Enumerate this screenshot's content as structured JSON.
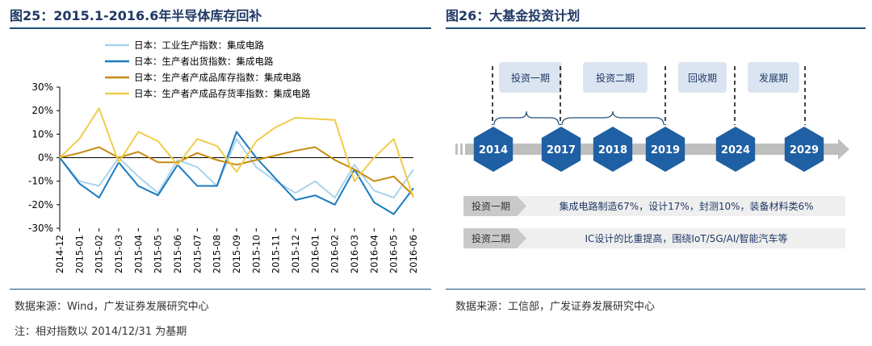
{
  "left": {
    "title": "图25：2015.1-2016.6年半导体库存回补",
    "source": "数据来源：Wind，广发证券发展研究中心",
    "note": "注：相对指数以 2014/12/31 为基期",
    "chart_data": {
      "type": "line",
      "title": "2015.1-2016.6年半导体库存回补",
      "xlabel": "",
      "ylabel": "",
      "ylim": [
        -30,
        30
      ],
      "yticks": [
        -30,
        -20,
        -10,
        0,
        10,
        20,
        30
      ],
      "ytick_labels": [
        "-30%",
        "-20%",
        "-10%",
        "0%",
        "10%",
        "20%",
        "30%"
      ],
      "legend_position": "top-left",
      "categories": [
        "2014-12",
        "2015-01",
        "2015-02",
        "2015-03",
        "2015-04",
        "2015-05",
        "2015-06",
        "2015-07",
        "2015-08",
        "2015-09",
        "2015-10",
        "2015-11",
        "2015-12",
        "2016-01",
        "2016-02",
        "2016-03",
        "2016-04",
        "2016-05",
        "2016-06"
      ],
      "series": [
        {
          "name": "日本：工业生产指数：集成电路",
          "color": "#a9d3ec",
          "values": [
            0,
            -10,
            -12,
            0,
            -8,
            -15,
            -1,
            -4,
            -12,
            8,
            -4,
            -10,
            -15,
            -10,
            -17,
            -3,
            -14,
            -17,
            -5
          ]
        },
        {
          "name": "日本：生产者出货指数：集成电路",
          "color": "#1b7bbf",
          "values": [
            0,
            -11,
            -17,
            -2,
            -12,
            -16,
            -3,
            -12,
            -12,
            11,
            0,
            -9,
            -18,
            -16,
            -20,
            -5,
            -19,
            -24,
            -13
          ]
        },
        {
          "name": "日本：生产者产成品库存指数：集成电路",
          "color": "#c68a0c",
          "values": [
            0,
            2,
            4.5,
            0,
            2.5,
            -2,
            -2,
            2,
            -1,
            -3,
            -1,
            1,
            3,
            4.5,
            -1,
            -5,
            -10,
            -8,
            -16
          ]
        },
        {
          "name": "日本：生产者产成品存货率指数：集成电路",
          "color": "#f0cc4b",
          "values": [
            0,
            8,
            21,
            -2,
            11,
            7,
            -3,
            8,
            5,
            -6,
            7,
            13,
            17,
            16.5,
            16,
            -10,
            0,
            8,
            -17
          ]
        }
      ]
    }
  },
  "right": {
    "title": "图26：大基金投资计划",
    "source": "数据来源：工信部，广发证券发展研究中心",
    "phases": [
      "投资一期",
      "投资二期",
      "回收期",
      "发展期"
    ],
    "years": [
      "2014",
      "2017",
      "2018",
      "2019",
      "2024",
      "2029"
    ],
    "bars": [
      {
        "label": "投资一期",
        "text": "集成电路制造67%，设计17%，封测10%，装备材料类6%"
      },
      {
        "label": "投资二期",
        "text": "IC设计的比重提高，围绕IoT/5G/AI/智能汽车等"
      }
    ],
    "colors": {
      "hex_fill": "#1f5fa3",
      "arrow": "#bfbfbf",
      "phase_box": "#dbe5f1",
      "bar_fill": "#efefef"
    }
  }
}
